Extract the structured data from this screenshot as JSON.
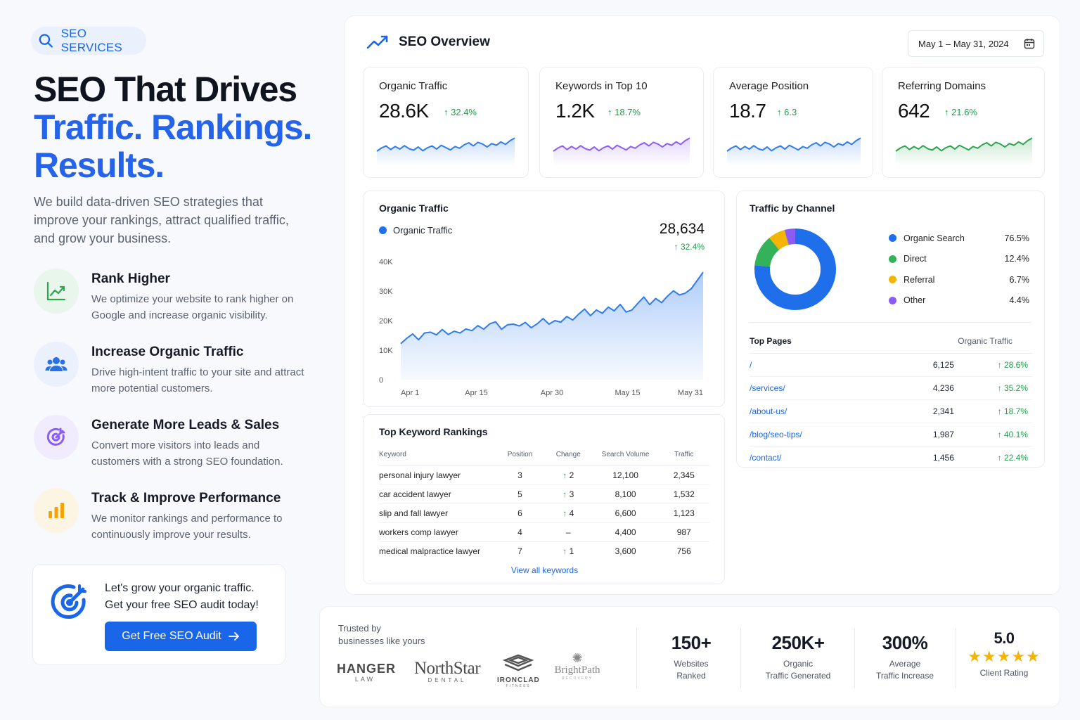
{
  "pill": {
    "label": "SEO SERVICES"
  },
  "hero": {
    "line1": "SEO That Drives",
    "line2": "Traffic. Rankings.",
    "line3": "Results."
  },
  "intro": "We build data-driven SEO strategies that improve your rankings, attract qualified traffic, and grow your business.",
  "features": [
    {
      "title": "Rank Higher",
      "desc": "We optimize your website to rank higher on Google and increase organic visibility.",
      "icon": "trending-up-icon"
    },
    {
      "title": "Increase Organic Traffic",
      "desc": "Drive high-intent traffic to your site and attract more potential customers.",
      "icon": "users-icon"
    },
    {
      "title": "Generate More Leads & Sales",
      "desc": "Convert more visitors into leads and customers with a strong SEO foundation.",
      "icon": "target-icon"
    },
    {
      "title": "Track & Improve Performance",
      "desc": "We monitor rankings and performance to continuously improve your results.",
      "icon": "bar-chart-icon"
    }
  ],
  "cta": {
    "line1": "Let's grow your organic traffic.",
    "line2": "Get your free SEO audit today!",
    "button": "Get Free SEO Audit"
  },
  "overview": {
    "title": "SEO Overview",
    "date_range": "May 1 – May 31, 2024"
  },
  "kpis": [
    {
      "label": "Organic Traffic",
      "value": "28.6K",
      "delta": "32.4%",
      "color": "#2f7bf0"
    },
    {
      "label": "Keywords in Top 10",
      "value": "1.2K",
      "delta": "18.7%",
      "color": "#8b5cf6"
    },
    {
      "label": "Average Position",
      "value": "18.7",
      "delta": "6.3",
      "color": "#2f7bf0"
    },
    {
      "label": "Referring Domains",
      "value": "642",
      "delta": "21.6%",
      "color": "#2ea44f"
    }
  ],
  "traffic_card": {
    "title": "Organic Traffic",
    "legend": "Organic Traffic",
    "total": "28,634",
    "delta": "32.4%"
  },
  "chart_data": {
    "type": "area",
    "title": "Organic Traffic",
    "series": [
      {
        "name": "Organic Traffic",
        "values": [
          12200,
          14000,
          15500,
          13500,
          15800,
          16100,
          15200,
          17000,
          15300,
          16400,
          15800,
          17200,
          16600,
          18300,
          17100,
          18900,
          19600,
          17100,
          18600,
          18800,
          18200,
          19400,
          17600,
          18900,
          20700,
          18800,
          20000,
          19500,
          21400,
          20200,
          22200,
          23900,
          21700,
          23600,
          22500,
          24600,
          23300,
          25500,
          22900,
          23600,
          25900,
          28000,
          25400,
          27500,
          26100,
          28300,
          30100,
          28700,
          29300,
          30800,
          33600,
          36400
        ]
      }
    ],
    "xticks": [
      "Apr 1",
      "Apr 15",
      "Apr 30",
      "May 15",
      "May 31"
    ],
    "yticks": [
      "0",
      "10K",
      "20K",
      "30K",
      "40K"
    ],
    "ylim": [
      0,
      40000
    ],
    "color": "#2f7bf0"
  },
  "channels": {
    "title": "Traffic by Channel",
    "items": [
      {
        "name": "Organic Search",
        "value": 76.5,
        "label": "76.5%",
        "color": "#1f6feb"
      },
      {
        "name": "Direct",
        "value": 12.4,
        "label": "12.4%",
        "color": "#34b25a"
      },
      {
        "name": "Referral",
        "value": 6.7,
        "label": "6.7%",
        "color": "#f4b400"
      },
      {
        "name": "Other",
        "value": 4.4,
        "label": "4.4%",
        "color": "#8b5cf6"
      }
    ]
  },
  "top_pages": {
    "title": "Top Pages",
    "col": "Organic Traffic",
    "rows": [
      {
        "page": "/",
        "traffic": "6,125",
        "delta": "28.6%"
      },
      {
        "page": "/services/",
        "traffic": "4,236",
        "delta": "35.2%"
      },
      {
        "page": "/about-us/",
        "traffic": "2,341",
        "delta": "18.7%"
      },
      {
        "page": "/blog/seo-tips/",
        "traffic": "1,987",
        "delta": "40.1%"
      },
      {
        "page": "/contact/",
        "traffic": "1,456",
        "delta": "22.4%"
      }
    ]
  },
  "keywords": {
    "title": "Top Keyword Rankings",
    "headers": [
      "Keyword",
      "Position",
      "Change",
      "Search Volume",
      "Traffic"
    ],
    "rows": [
      {
        "keyword": "personal injury lawyer",
        "position": "3",
        "change": "2",
        "up": true,
        "volume": "12,100",
        "traffic": "2,345"
      },
      {
        "keyword": "car accident lawyer",
        "position": "5",
        "change": "3",
        "up": true,
        "volume": "8,100",
        "traffic": "1,532"
      },
      {
        "keyword": "slip and fall lawyer",
        "position": "6",
        "change": "4",
        "up": true,
        "volume": "6,600",
        "traffic": "1,123"
      },
      {
        "keyword": "workers comp lawyer",
        "position": "4",
        "change": "–",
        "up": false,
        "volume": "4,400",
        "traffic": "987"
      },
      {
        "keyword": "medical malpractice lawyer",
        "position": "7",
        "change": "1",
        "up": true,
        "volume": "3,600",
        "traffic": "756"
      }
    ],
    "view_all": "View all keywords"
  },
  "trusted": {
    "label_line1": "Trusted by",
    "label_line2": "businesses like yours",
    "logos": [
      {
        "main": "HANGER",
        "sub": "LAW"
      },
      {
        "main": "NorthStar",
        "sub": "DENTAL"
      },
      {
        "main": "IRONCLAD",
        "sub": "FITNESS"
      },
      {
        "main": "BrightPath",
        "sub": "RECOVERY"
      }
    ]
  },
  "stats": [
    {
      "value": "150+",
      "line1": "Websites",
      "line2": "Ranked"
    },
    {
      "value": "250K+",
      "line1": "Organic",
      "line2": "Traffic Generated"
    },
    {
      "value": "300%",
      "line1": "Average",
      "line2": "Traffic Increase"
    },
    {
      "value": "5.0",
      "line1": "Client Rating",
      "line2": "",
      "stars": "★★★★★"
    }
  ]
}
